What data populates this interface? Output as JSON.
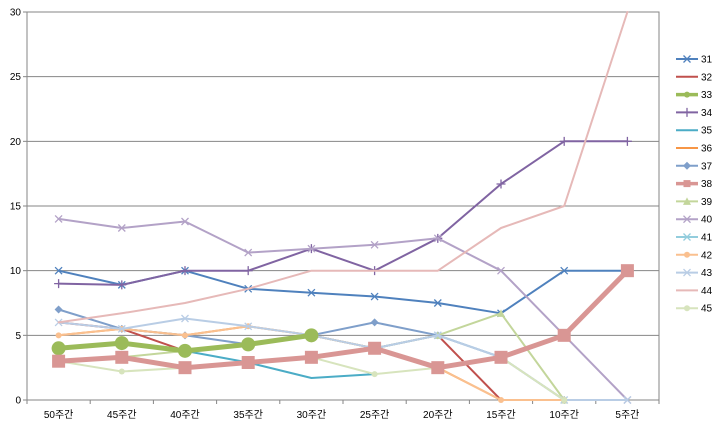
{
  "chart_data": {
    "type": "line",
    "title": "",
    "xlabel": "",
    "ylabel": "",
    "categories": [
      "50주간",
      "45주간",
      "40주간",
      "35주간",
      "30주간",
      "25주간",
      "20주간",
      "15주간",
      "10주간",
      "5주간"
    ],
    "yticks": [
      0,
      5,
      10,
      15,
      20,
      25,
      30
    ],
    "ylim": [
      0,
      30
    ],
    "grid": "horizontal",
    "legend_position": "right",
    "series": [
      {
        "name": "31",
        "color": "#4F81BD",
        "marker": "x",
        "width": 2,
        "values": [
          10,
          8.9,
          10,
          8.6,
          8.3,
          8,
          7.5,
          6.7,
          10,
          10
        ]
      },
      {
        "name": "32",
        "color": "#C0504D",
        "marker": "line",
        "width": 2,
        "values": [
          6,
          5.5,
          3.8,
          4.3,
          5,
          4,
          5,
          0,
          null,
          null
        ]
      },
      {
        "name": "33",
        "color": "#9BBB59",
        "marker": "circle",
        "width": 5,
        "values": [
          4,
          4.4,
          3.8,
          4.3,
          5,
          null,
          null,
          null,
          null,
          null
        ]
      },
      {
        "name": "34",
        "color": "#8064A2",
        "marker": "plus",
        "width": 2,
        "values": [
          9,
          8.9,
          10,
          10,
          11.7,
          10,
          12.5,
          16.7,
          20,
          20
        ]
      },
      {
        "name": "35",
        "color": "#4BACC6",
        "marker": "line",
        "width": 2,
        "values": [
          4,
          4.4,
          3.8,
          2.9,
          1.7,
          2,
          null,
          null,
          null,
          null
        ]
      },
      {
        "name": "36",
        "color": "#F79646",
        "marker": "line",
        "width": 2,
        "values": [
          5,
          5.5,
          5,
          5.7,
          5,
          4,
          2.5,
          0,
          null,
          null
        ]
      },
      {
        "name": "37",
        "color": "#7F9FCA",
        "marker": "diamond",
        "width": 2,
        "values": [
          7,
          5.5,
          5,
          4.3,
          5,
          6,
          5,
          3.3,
          0,
          null
        ]
      },
      {
        "name": "38",
        "color": "#D99694",
        "marker": "square",
        "width": 5,
        "values": [
          3,
          3.3,
          2.5,
          2.9,
          3.3,
          4,
          2.5,
          3.3,
          5,
          10
        ]
      },
      {
        "name": "39",
        "color": "#C3D69B",
        "marker": "triangle",
        "width": 2,
        "values": [
          3,
          3.3,
          3.8,
          4.3,
          5,
          4,
          5,
          6.7,
          0,
          null
        ]
      },
      {
        "name": "40",
        "color": "#B3A2C7",
        "marker": "x",
        "width": 2,
        "values": [
          14,
          13.3,
          13.8,
          11.4,
          11.7,
          12,
          12.5,
          10,
          5,
          0
        ]
      },
      {
        "name": "41",
        "color": "#93CDDD",
        "marker": "x",
        "width": 2,
        "values": [
          4,
          4.4,
          3.8,
          4.3,
          5,
          4,
          5,
          3.3,
          null,
          null
        ]
      },
      {
        "name": "42",
        "color": "#FAC08F",
        "marker": "circle",
        "width": 2,
        "values": [
          5,
          5.5,
          5,
          5.7,
          5,
          4,
          2.5,
          0,
          0,
          null
        ]
      },
      {
        "name": "43",
        "color": "#B9CDE5",
        "marker": "x",
        "width": 2,
        "values": [
          6,
          5.5,
          6.3,
          5.7,
          5,
          4,
          5,
          3.3,
          0,
          0
        ]
      },
      {
        "name": "44",
        "color": "#E6B9B8",
        "marker": "line",
        "width": 2,
        "values": [
          6,
          6.7,
          7.5,
          8.6,
          10,
          10,
          10,
          13.3,
          15,
          30
        ]
      },
      {
        "name": "45",
        "color": "#D7E4BD",
        "marker": "circle",
        "width": 2,
        "values": [
          3,
          2.2,
          2.5,
          2.9,
          3.3,
          2,
          2.5,
          3.3,
          0,
          null
        ]
      }
    ]
  }
}
